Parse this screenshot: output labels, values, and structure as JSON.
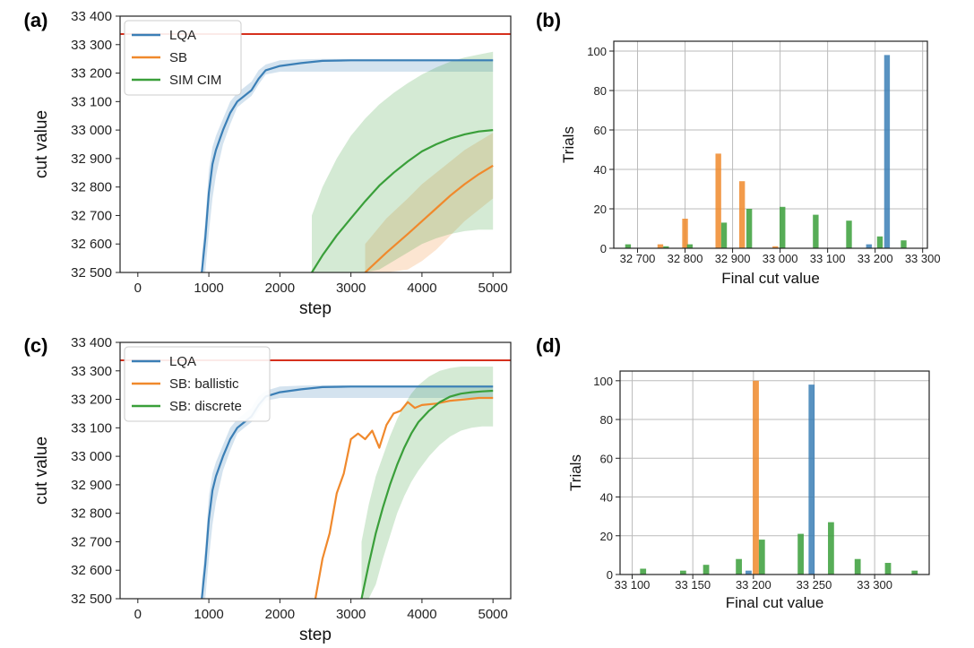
{
  "colors": {
    "lqa": "#3b7fb6",
    "sb": "#f0892c",
    "sim_cim": "#3a9f3a",
    "optimum_line": "#d6301d",
    "grid": "#bbbbbb",
    "axes": "#222222"
  },
  "chart_data": [
    {
      "id": "a",
      "panel_label": "(a)",
      "type": "line",
      "xlabel": "step",
      "ylabel": "cut value",
      "xlim": [
        -250,
        5250
      ],
      "ylim": [
        32500,
        33400
      ],
      "xticks": [
        0,
        1000,
        2000,
        3000,
        4000,
        5000
      ],
      "xtick_labels": [
        "0",
        "1000",
        "2000",
        "3000",
        "4000",
        "5000"
      ],
      "yticks": [
        32500,
        32600,
        32700,
        32800,
        32900,
        33000,
        33100,
        33200,
        33300,
        33400
      ],
      "ytick_labels": [
        "32 500",
        "32 600",
        "32 700",
        "32 800",
        "32 900",
        "33 000",
        "33 100",
        "33 200",
        "33 300",
        "33 400"
      ],
      "grid": false,
      "legend": "top-left",
      "reference_line": 33337,
      "series": [
        {
          "name": "LQA",
          "color_key": "lqa",
          "x": [
            900,
            950,
            1000,
            1050,
            1100,
            1200,
            1300,
            1400,
            1500,
            1600,
            1700,
            1800,
            2000,
            2300,
            2600,
            3000,
            4000,
            5000
          ],
          "y": [
            32500,
            32620,
            32780,
            32880,
            32930,
            33000,
            33060,
            33100,
            33120,
            33140,
            33180,
            33210,
            33225,
            33235,
            33243,
            33245,
            33245,
            33245
          ],
          "band_low": [
            32500,
            32500,
            32640,
            32760,
            32840,
            32950,
            33020,
            33080,
            33100,
            33120,
            33160,
            33195,
            33205,
            33205,
            33205,
            33205,
            33205,
            33205
          ],
          "band_high": [
            32560,
            32680,
            32860,
            32940,
            32980,
            33040,
            33100,
            33130,
            33150,
            33170,
            33210,
            33230,
            33245,
            33248,
            33250,
            33250,
            33250,
            33250
          ]
        },
        {
          "name": "SB",
          "color_key": "sb",
          "x": [
            3200,
            3500,
            3800,
            4000,
            4200,
            4400,
            4600,
            4800,
            5000
          ],
          "y": [
            32500,
            32570,
            32635,
            32680,
            32725,
            32770,
            32810,
            32845,
            32875
          ],
          "band_low": [
            32500,
            32500,
            32510,
            32540,
            32580,
            32630,
            32680,
            32720,
            32760
          ],
          "band_high": [
            32600,
            32690,
            32760,
            32810,
            32850,
            32890,
            32930,
            32960,
            32990
          ]
        },
        {
          "name": "SIM CIM",
          "color_key": "sim_cim",
          "x": [
            2450,
            2600,
            2800,
            3000,
            3200,
            3400,
            3600,
            3800,
            4000,
            4200,
            4400,
            4600,
            4800,
            5000
          ],
          "y": [
            32500,
            32560,
            32630,
            32690,
            32750,
            32805,
            32850,
            32890,
            32925,
            32950,
            32970,
            32985,
            32995,
            33000
          ],
          "band_low": [
            32500,
            32500,
            32500,
            32500,
            32500,
            32510,
            32540,
            32570,
            32600,
            32620,
            32635,
            32645,
            32650,
            32650
          ],
          "band_high": [
            32700,
            32800,
            32900,
            32980,
            33040,
            33090,
            33130,
            33165,
            33195,
            33220,
            33240,
            33255,
            33265,
            33275
          ]
        }
      ]
    },
    {
      "id": "b",
      "panel_label": "(b)",
      "type": "bar",
      "xlabel": "Final cut value",
      "ylabel": "Trials",
      "xlim": [
        32650,
        33310
      ],
      "ylim": [
        0,
        105
      ],
      "xticks": [
        32700,
        32800,
        32900,
        33000,
        33100,
        33200,
        33300
      ],
      "xtick_labels": [
        "32 700",
        "32 800",
        "32 900",
        "33 000",
        "33 100",
        "33 200",
        "33 300"
      ],
      "yticks": [
        0,
        20,
        40,
        60,
        80,
        100
      ],
      "ytick_labels": [
        "0",
        "20",
        "40",
        "60",
        "80",
        "100"
      ],
      "grid": true,
      "bar_width": 12,
      "series": [
        {
          "name": "LQA",
          "color_key": "lqa",
          "x": [
            33187,
            33225
          ],
          "values": [
            2,
            98
          ]
        },
        {
          "name": "SB",
          "color_key": "sb",
          "x": [
            32748,
            32800,
            32870,
            32920,
            32990
          ],
          "values": [
            2,
            15,
            48,
            34,
            1
          ]
        },
        {
          "name": "SIM CIM",
          "color_key": "sim_cim",
          "x": [
            32680,
            32760,
            32810,
            32882,
            32935,
            33005,
            33075,
            33145,
            33210,
            33260
          ],
          "values": [
            2,
            1,
            2,
            13,
            20,
            21,
            17,
            14,
            6,
            4
          ]
        }
      ]
    },
    {
      "id": "c",
      "panel_label": "(c)",
      "type": "line",
      "xlabel": "step",
      "ylabel": "cut value",
      "xlim": [
        -250,
        5250
      ],
      "ylim": [
        32500,
        33400
      ],
      "xticks": [
        0,
        1000,
        2000,
        3000,
        4000,
        5000
      ],
      "xtick_labels": [
        "0",
        "1000",
        "2000",
        "3000",
        "4000",
        "5000"
      ],
      "yticks": [
        32500,
        32600,
        32700,
        32800,
        32900,
        33000,
        33100,
        33200,
        33300,
        33400
      ],
      "ytick_labels": [
        "32 500",
        "32 600",
        "32 700",
        "32 800",
        "32 900",
        "33 000",
        "33 100",
        "33 200",
        "33 300",
        "33 400"
      ],
      "grid": false,
      "legend": "top-left",
      "reference_line": 33337,
      "series": [
        {
          "name": "LQA",
          "color_key": "lqa",
          "x": [
            900,
            950,
            1000,
            1050,
            1100,
            1200,
            1300,
            1400,
            1500,
            1600,
            1700,
            1800,
            2000,
            2300,
            2600,
            3000,
            4000,
            5000
          ],
          "y": [
            32500,
            32620,
            32780,
            32880,
            32930,
            33000,
            33060,
            33100,
            33120,
            33140,
            33180,
            33210,
            33225,
            33235,
            33243,
            33245,
            33245,
            33245
          ],
          "band_low": [
            32500,
            32500,
            32640,
            32760,
            32840,
            32950,
            33020,
            33080,
            33100,
            33120,
            33160,
            33195,
            33205,
            33205,
            33205,
            33205,
            33205,
            33205
          ],
          "band_high": [
            32560,
            32680,
            32860,
            32940,
            32980,
            33040,
            33100,
            33130,
            33150,
            33170,
            33210,
            33230,
            33245,
            33248,
            33250,
            33250,
            33250,
            33250
          ]
        },
        {
          "name": "SB: ballistic",
          "color_key": "sb",
          "x": [
            2500,
            2600,
            2700,
            2800,
            2900,
            3000,
            3100,
            3200,
            3300,
            3400,
            3500,
            3600,
            3700,
            3800,
            3900,
            4000,
            4200,
            4400,
            4600,
            4800,
            5000
          ],
          "y": [
            32500,
            32640,
            32730,
            32870,
            32940,
            33060,
            33080,
            33060,
            33090,
            33030,
            33110,
            33150,
            33160,
            33190,
            33170,
            33180,
            33185,
            33195,
            33200,
            33205,
            33205
          ]
        },
        {
          "name": "SB: discrete",
          "color_key": "sim_cim",
          "x": [
            3150,
            3250,
            3350,
            3450,
            3550,
            3650,
            3750,
            3850,
            3950,
            4100,
            4250,
            4400,
            4550,
            4700,
            4850,
            5000
          ],
          "y": [
            32500,
            32620,
            32730,
            32820,
            32900,
            32970,
            33030,
            33080,
            33120,
            33160,
            33190,
            33210,
            33220,
            33225,
            33228,
            33230
          ],
          "band_low": [
            32500,
            32500,
            32550,
            32640,
            32720,
            32800,
            32860,
            32910,
            32950,
            33000,
            33040,
            33070,
            33090,
            33100,
            33105,
            33105
          ],
          "band_high": [
            32700,
            32830,
            32930,
            33000,
            33070,
            33130,
            33180,
            33220,
            33250,
            33280,
            33300,
            33310,
            33315,
            33315,
            33315,
            33315
          ]
        }
      ]
    },
    {
      "id": "d",
      "panel_label": "(d)",
      "type": "bar",
      "xlabel": "Final cut value",
      "ylabel": "Trials",
      "xlim": [
        33090,
        33345
      ],
      "ylim": [
        0,
        105
      ],
      "xticks": [
        33100,
        33150,
        33200,
        33250,
        33300
      ],
      "xtick_labels": [
        "33 100",
        "33 150",
        "33 200",
        "33 250",
        "33 300"
      ],
      "yticks": [
        0,
        20,
        40,
        60,
        80,
        100
      ],
      "ytick_labels": [
        "0",
        "20",
        "40",
        "60",
        "80",
        "100"
      ],
      "grid": true,
      "bar_width": 5,
      "series": [
        {
          "name": "LQA",
          "color_key": "lqa",
          "x": [
            33196,
            33248
          ],
          "values": [
            2,
            98
          ]
        },
        {
          "name": "SB: ballistic",
          "color_key": "sb",
          "x": [
            33202
          ],
          "values": [
            100
          ]
        },
        {
          "name": "SB: discrete",
          "color_key": "sim_cim",
          "x": [
            33109,
            33142,
            33161,
            33188,
            33207,
            33239,
            33264,
            33286,
            33311,
            33333
          ],
          "values": [
            3,
            2,
            5,
            8,
            18,
            21,
            27,
            8,
            6,
            2
          ]
        }
      ]
    }
  ]
}
